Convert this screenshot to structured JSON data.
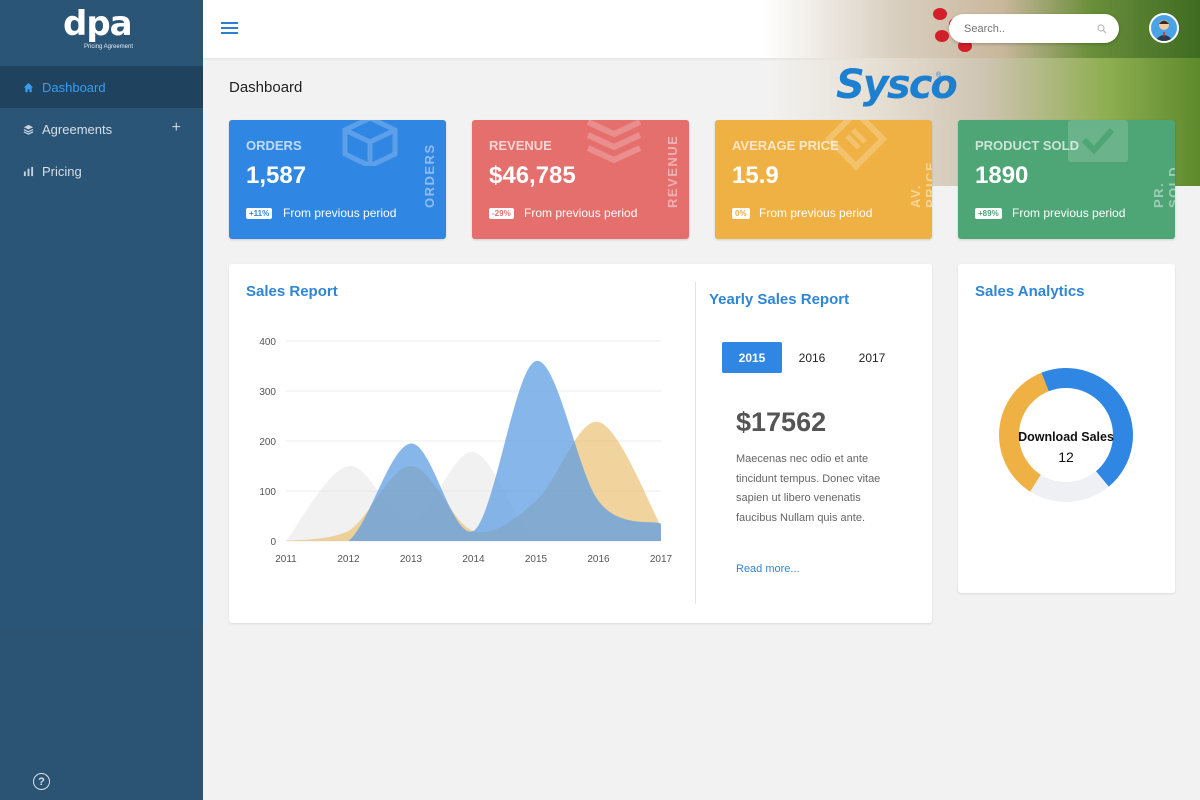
{
  "app": {
    "logo_text": "dpa",
    "logo_subtitle": "Pricing Agreement"
  },
  "sidebar": {
    "items": [
      {
        "label": "Dashboard",
        "icon": "home-icon",
        "active": true
      },
      {
        "label": "Agreements",
        "icon": "layers-icon",
        "has_plus": true
      },
      {
        "label": "Pricing",
        "icon": "bar-chart-icon"
      }
    ],
    "plus": "+",
    "help": "?"
  },
  "topbar": {
    "search_placeholder": "Search.."
  },
  "page": {
    "title": "Dashboard",
    "brand": "Sysco",
    "brand_mark": "®"
  },
  "cards": [
    {
      "title": "ORDERS",
      "value": "1,587",
      "badge": "+11%",
      "foot": "From previous period",
      "vertical": "ORDERS",
      "color": "#2f86e3"
    },
    {
      "title": "REVENUE",
      "value": "$46,785",
      "badge": "-29%",
      "foot": "From previous period",
      "vertical": "REVENUE",
      "color": "#e46f6d"
    },
    {
      "title": "AVERAGE PRICE",
      "value": "15.9",
      "badge": "0%",
      "foot": "From previous period",
      "vertical": "AV. PRICE",
      "color": "#efb143"
    },
    {
      "title": "PRODUCT SOLD",
      "value": "1890",
      "badge": "+89%",
      "foot": "From previous period",
      "vertical": "PR. SOLD",
      "color": "#4ea576"
    }
  ],
  "sales_report": {
    "title": "Sales Report"
  },
  "chart_data": {
    "type": "area",
    "x": [
      "2011",
      "2012",
      "2013",
      "2014",
      "2015",
      "2016",
      "2017"
    ],
    "ylim": [
      0,
      400
    ],
    "yticks": [
      "0",
      "100",
      "200",
      "300",
      "400"
    ],
    "grid": true,
    "series": [
      {
        "values": [
          0,
          150,
          40,
          178,
          0,
          0,
          0
        ],
        "color": "#e6e6e6"
      },
      {
        "values": [
          0,
          20,
          150,
          20,
          80,
          238,
          30
        ],
        "color": "#e9c073"
      },
      {
        "values": [
          0,
          0,
          195,
          20,
          360,
          80,
          35
        ],
        "color": "#5f9ee3"
      }
    ]
  },
  "yearly": {
    "title": "Yearly Sales Report",
    "tabs": [
      "2015",
      "2016",
      "2017"
    ],
    "amount": "$17562",
    "text": "Maecenas nec odio et ante tincidunt tempus. Donec vitae sapien ut libero venenatis faucibus Nullam quis ante.",
    "read_more": "Read more..."
  },
  "analytics": {
    "title": "Sales Analytics",
    "label": "Download Sales",
    "value": "12",
    "segments": [
      {
        "value": 0.45,
        "color": "#2f86e3"
      },
      {
        "value": 0.2,
        "color": "#eef0f4"
      },
      {
        "value": 0.35,
        "color": "#efb143"
      }
    ]
  }
}
